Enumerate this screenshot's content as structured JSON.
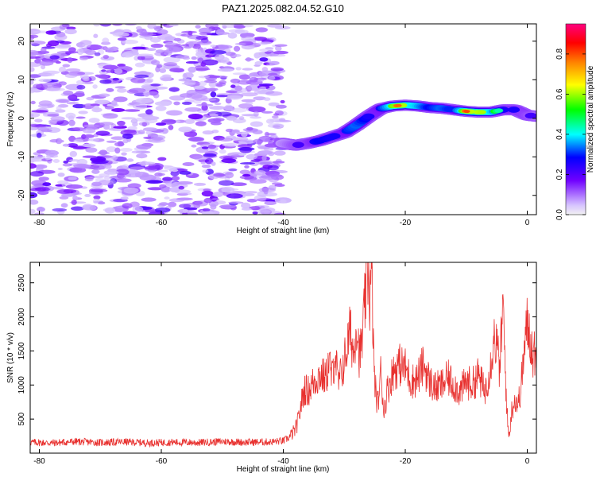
{
  "title": "PAZ1.2025.082.04.52.G10",
  "colorbar": {
    "label": "Normalized spectral amplitude",
    "ticks": [
      "0.0",
      "0.2",
      "0.4",
      "0.6",
      "0.8"
    ],
    "tick_values": [
      0.0,
      0.2,
      0.4,
      0.6,
      0.8
    ],
    "range": [
      0,
      0.95
    ]
  },
  "chart_data": [
    {
      "type": "heatmap",
      "xlabel": "Height of straight line (km)",
      "ylabel": "Frequency (Hz)",
      "xlim": [
        -81.5,
        1.5
      ],
      "ylim": [
        -25,
        24.5
      ],
      "xticks": [
        -80,
        -60,
        -40,
        -20,
        0
      ],
      "yticks": [
        20,
        10,
        0,
        -10,
        -20
      ],
      "noise_region": {
        "x_range": [
          -81.5,
          -40
        ],
        "amplitude_range": [
          0.05,
          0.2
        ]
      },
      "ridge": {
        "x": [
          -40,
          -38,
          -36,
          -34,
          -32,
          -30,
          -28,
          -26,
          -24,
          -22,
          -20,
          -18,
          -16,
          -14,
          -12,
          -10,
          -8,
          -6,
          -4,
          -2,
          0,
          1.5
        ],
        "y": [
          -6.5,
          -7.0,
          -6.5,
          -5.8,
          -4.8,
          -3.8,
          -1.8,
          0.5,
          2.5,
          3.2,
          3.4,
          3.2,
          2.8,
          2.6,
          2.2,
          1.8,
          1.6,
          1.6,
          2.2,
          2.2,
          0.8,
          0.5
        ],
        "amplitude": [
          0.3,
          0.45,
          0.5,
          0.6,
          0.55,
          0.6,
          0.7,
          0.55,
          0.6,
          0.85,
          0.9,
          0.8,
          0.6,
          0.7,
          0.6,
          0.9,
          0.9,
          0.85,
          0.55,
          0.55,
          0.5,
          0.4
        ]
      }
    },
    {
      "type": "line",
      "xlabel": "Height of straight line (km)",
      "ylabel": "SNR (10 * v/v)",
      "xlim": [
        -81.5,
        1.5
      ],
      "ylim": [
        0,
        2800
      ],
      "xticks": [
        -80,
        -60,
        -40,
        -20,
        0
      ],
      "yticks": [
        500,
        1000,
        1500,
        2000,
        2500
      ],
      "color": "#e8312f",
      "series": [
        {
          "x": [
            -81.5,
            -78,
            -74,
            -70,
            -66,
            -62,
            -58,
            -54,
            -50,
            -46,
            -42,
            -40,
            -39,
            -38,
            -37.5,
            -37,
            -36.5,
            -36,
            -35,
            -34,
            -33,
            -32.5,
            -32,
            -31.5,
            -31,
            -30,
            -29,
            -28.5,
            -28,
            -27.5,
            -27,
            -26.5,
            -26,
            -25.8,
            -25.5,
            -25.2,
            -25,
            -24.5,
            -24,
            -23.5,
            -23,
            -22,
            -21,
            -20,
            -19,
            -18,
            -17,
            -16,
            -15,
            -14,
            -13,
            -12,
            -11,
            -10,
            -9,
            -8,
            -7,
            -6,
            -5.5,
            -5,
            -4.5,
            -4,
            -3.5,
            -3.2,
            -3,
            -2.5,
            -2,
            -1.5,
            -1,
            -0.5,
            0,
            0.5,
            1,
            1.5
          ],
          "y": [
            160,
            150,
            170,
            155,
            165,
            150,
            160,
            155,
            170,
            160,
            165,
            180,
            230,
            350,
            500,
            750,
            950,
            900,
            1050,
            1150,
            1100,
            1350,
            1100,
            1500,
            1000,
            1350,
            1800,
            1450,
            1950,
            1400,
            1700,
            2350,
            2750,
            2200,
            2600,
            1500,
            1000,
            700,
            1200,
            600,
            900,
            1200,
            1300,
            1250,
            1050,
            1100,
            1300,
            1050,
            950,
            1000,
            1100,
            1000,
            900,
            1050,
            1000,
            1150,
            900,
            1300,
            1700,
            1600,
            1200,
            2200,
            1000,
            400,
            250,
            650,
            800,
            700,
            1000,
            1500,
            1900,
            1700,
            1400,
            1550
          ]
        }
      ]
    }
  ]
}
